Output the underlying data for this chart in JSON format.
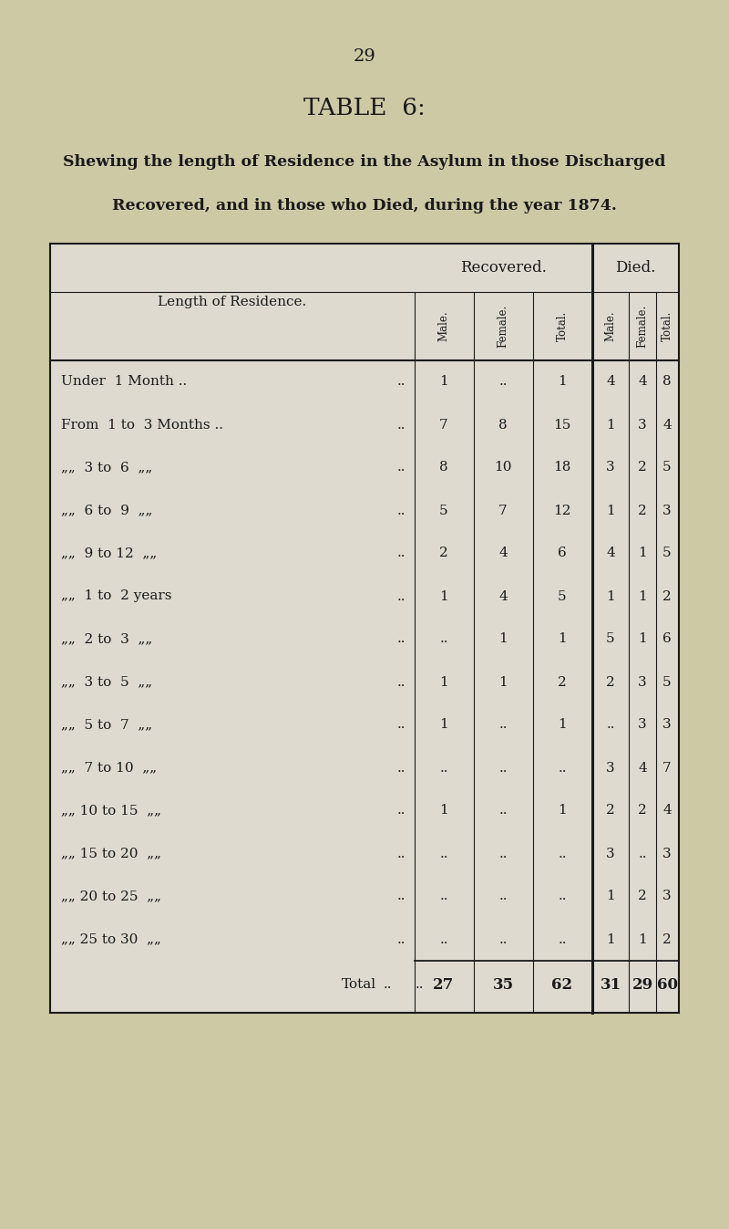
{
  "page_number": "29",
  "table_title": "TABLE  6:",
  "subtitle_line1": "Shewing the length of Residence in the Asylum in those Discharged",
  "subtitle_line2": "Recovered, and in those who Died, during the year 1874.",
  "bg_color": "#cdc9a5",
  "table_bg": "#dedad0",
  "col_header_1": "Recovered.",
  "col_header_2": "Died.",
  "sub_headers": [
    "Male.",
    "Female.",
    "Total.",
    "Male.",
    "Female.",
    "Total."
  ],
  "rows": [
    {
      "label_prefix": "Under",
      "label_main": " 1 Month ..",
      "label_suffix": "  ..",
      "rec_m": "1",
      "rec_f": "..",
      "rec_t": "1",
      "die_m": "4",
      "die_f": "4",
      "die_t": "8"
    },
    {
      "label_prefix": "From",
      "label_main": " 1 to  3 Months ..",
      "label_suffix": "  ..",
      "rec_m": "7",
      "rec_f": "8",
      "rec_t": "15",
      "die_m": "1",
      "die_f": "3",
      "die_t": "4"
    },
    {
      "label_prefix": "„„",
      "label_main": " 3 to  6  „„",
      "label_suffix": "  ..",
      "rec_m": "8",
      "rec_f": "10",
      "rec_t": "18",
      "die_m": "3",
      "die_f": "2",
      "die_t": "5"
    },
    {
      "label_prefix": "„„",
      "label_main": " 6 to  9  „„",
      "label_suffix": "  ..",
      "rec_m": "5",
      "rec_f": "7",
      "rec_t": "12",
      "die_m": "1",
      "die_f": "2",
      "die_t": "3"
    },
    {
      "label_prefix": "„„",
      "label_main": " 9 to 12  „„",
      "label_suffix": "  ..",
      "rec_m": "2",
      "rec_f": "4",
      "rec_t": "6",
      "die_m": "4",
      "die_f": "1",
      "die_t": "5"
    },
    {
      "label_prefix": "„„",
      "label_main": " 1 to  2 years",
      "label_suffix": "  ..",
      "rec_m": "1",
      "rec_f": "4",
      "rec_t": "5",
      "die_m": "1",
      "die_f": "1",
      "die_t": "2"
    },
    {
      "label_prefix": "„„",
      "label_main": " 2 to  3  „„",
      "label_suffix": "  ..",
      "rec_m": "..",
      "rec_f": "1",
      "rec_t": "1",
      "die_m": "5",
      "die_f": "1",
      "die_t": "6"
    },
    {
      "label_prefix": "„„",
      "label_main": " 3 to  5  „„",
      "label_suffix": "  ..",
      "rec_m": "1",
      "rec_f": "1",
      "rec_t": "2",
      "die_m": "2",
      "die_f": "3",
      "die_t": "5"
    },
    {
      "label_prefix": "„„",
      "label_main": " 5 to  7  „„",
      "label_suffix": "  ..",
      "rec_m": "1",
      "rec_f": "..",
      "rec_t": "1",
      "die_m": "..",
      "die_f": "3",
      "die_t": "3"
    },
    {
      "label_prefix": "„„",
      "label_main": " 7 to 10  „„",
      "label_suffix": "  ..",
      "rec_m": "..",
      "rec_f": "..",
      "rec_t": "..",
      "die_m": "3",
      "die_f": "4",
      "die_t": "7"
    },
    {
      "label_prefix": "„„",
      "label_main": "10 to 15  „„",
      "label_suffix": "  ..",
      "rec_m": "1",
      "rec_f": "..",
      "rec_t": "1",
      "die_m": "2",
      "die_f": "2",
      "die_t": "4"
    },
    {
      "label_prefix": "„„",
      "label_main": "15 to 20  „„",
      "label_suffix": "  ..",
      "rec_m": "..",
      "rec_f": "..",
      "rec_t": "..",
      "die_m": "3",
      "die_f": "..",
      "die_t": "3"
    },
    {
      "label_prefix": "„„",
      "label_main": "20 to 25  „„",
      "label_suffix": "  ..",
      "rec_m": "..",
      "rec_f": "..",
      "rec_t": "..",
      "die_m": "1",
      "die_f": "2",
      "die_t": "3"
    },
    {
      "label_prefix": "„„",
      "label_main": "25 to 30  „„",
      "label_suffix": "  ..",
      "rec_m": "..",
      "rec_f": "..",
      "rec_t": "..",
      "die_m": "1",
      "die_f": "1",
      "die_t": "2"
    }
  ],
  "totals": {
    "rec_m": "27",
    "rec_f": "35",
    "rec_t": "62",
    "die_m": "31",
    "die_f": "29",
    "die_t": "60"
  },
  "row_labels": [
    "Under  1 Month ..",
    "From  1 to  3 Months ..",
    "„„  3 to  6  „„",
    "„„  6 to  9  „„",
    "„„  9 to 12  „„",
    "„„  1 to  2 years",
    "„„  2 to  3  „„",
    "„„  3 to  5  „„",
    "„„  5 to  7  „„",
    "„„  7 to 10  „„",
    "„„ 10 to 15  „„",
    "„„ 15 to 20  „„",
    "„„ 20 to 25  „„",
    "„„ 25 to 30  „„"
  ]
}
